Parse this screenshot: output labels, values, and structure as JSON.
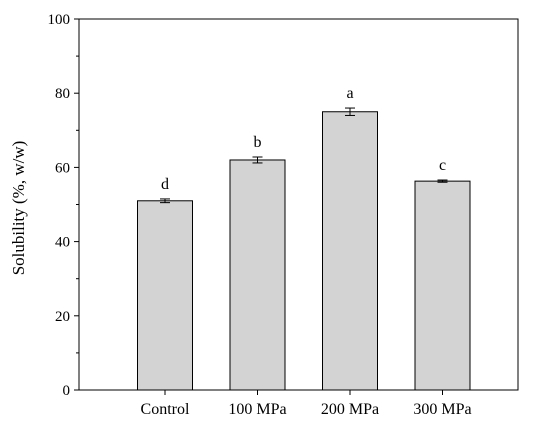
{
  "chart_data": {
    "type": "bar",
    "title": "",
    "xlabel": "",
    "ylabel": "Solubility (%, w/w)",
    "ylim": [
      0,
      100
    ],
    "yticks": [
      0,
      20,
      40,
      60,
      80,
      100
    ],
    "grid": false,
    "legend": "none",
    "categories": [
      "Control",
      "100 MPa",
      "200 MPa",
      "300 MPa"
    ],
    "values": [
      51.0,
      62.0,
      75.0,
      56.3
    ],
    "errors": [
      0.5,
      0.8,
      1.0,
      0.3
    ],
    "significance_labels": [
      "d",
      "b",
      "a",
      "c"
    ],
    "colors": {
      "bar_fill": "#d3d3d3",
      "bar_stroke": "#000000",
      "axis": "#000000"
    }
  }
}
